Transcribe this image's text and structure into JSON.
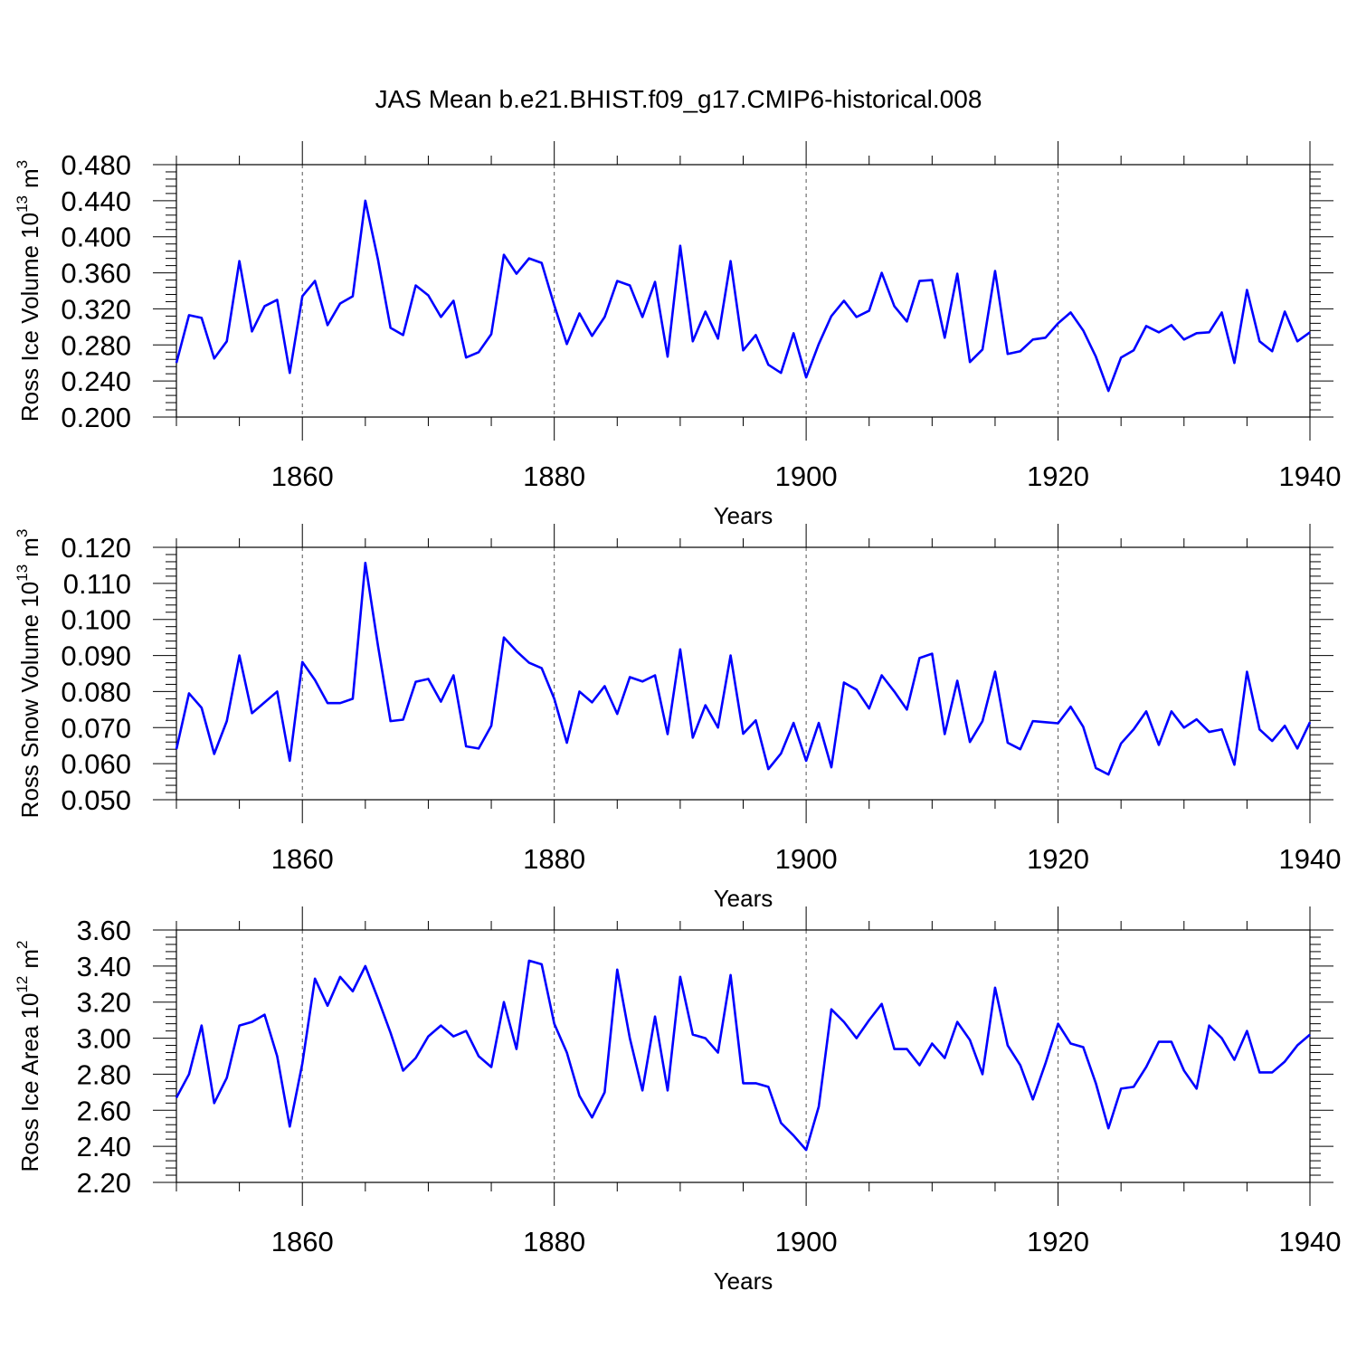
{
  "title": "JAS Mean b.e21.BHIST.f09_g17.CMIP6-historical.008",
  "chart_data": [
    {
      "type": "line",
      "ylabel": "Ross Ice Volume 10",
      "ylabel_exp": "13",
      "ylabel_unit": "m",
      "ylabel_unit_exp": "3",
      "xlabel": "Years",
      "xlim": [
        1850,
        1940
      ],
      "ylim": [
        0.2,
        0.48
      ],
      "yticks": [
        "0.200",
        "0.240",
        "0.280",
        "0.320",
        "0.360",
        "0.400",
        "0.440",
        "0.480"
      ],
      "xticks": [
        "1860",
        "1880",
        "1900",
        "1920",
        "1940"
      ],
      "grid": "dashed vertical at 1860, 1880, 1900, 1920",
      "color": "#0000ff",
      "x_start": 1850,
      "values": [
        0.26,
        0.313,
        0.31,
        0.265,
        0.284,
        0.373,
        0.295,
        0.323,
        0.33,
        0.249,
        0.334,
        0.351,
        0.302,
        0.326,
        0.334,
        0.44,
        0.375,
        0.299,
        0.291,
        0.346,
        0.335,
        0.311,
        0.329,
        0.266,
        0.272,
        0.292,
        0.38,
        0.359,
        0.376,
        0.371,
        0.324,
        0.281,
        0.315,
        0.29,
        0.311,
        0.351,
        0.346,
        0.311,
        0.35,
        0.267,
        0.39,
        0.284,
        0.317,
        0.287,
        0.373,
        0.274,
        0.291,
        0.258,
        0.249,
        0.293,
        0.244,
        0.281,
        0.312,
        0.329,
        0.311,
        0.318,
        0.36,
        0.323,
        0.306,
        0.351,
        0.352,
        0.288,
        0.359,
        0.261,
        0.275,
        0.362,
        0.27,
        0.273,
        0.286,
        0.288,
        0.304,
        0.316,
        0.296,
        0.267,
        0.229,
        0.266,
        0.274,
        0.301,
        0.294,
        0.302,
        0.286,
        0.293,
        0.294,
        0.316,
        0.26,
        0.341,
        0.284,
        0.273,
        0.317,
        0.284,
        0.294
      ]
    },
    {
      "type": "line",
      "ylabel": "Ross Snow Volume 10",
      "ylabel_exp": "13",
      "ylabel_unit": "m",
      "ylabel_unit_exp": "3",
      "xlabel": "Years",
      "xlim": [
        1850,
        1940
      ],
      "ylim": [
        0.05,
        0.12
      ],
      "yticks": [
        "0.050",
        "0.060",
        "0.070",
        "0.080",
        "0.090",
        "0.100",
        "0.110",
        "0.120"
      ],
      "xticks": [
        "1860",
        "1880",
        "1900",
        "1920",
        "1940"
      ],
      "grid": "dashed vertical at 1860, 1880, 1900, 1920",
      "color": "#0000ff",
      "x_start": 1850,
      "values": [
        0.064,
        0.0795,
        0.0755,
        0.0627,
        0.0718,
        0.09,
        0.074,
        0.077,
        0.08,
        0.0608,
        0.0882,
        0.0832,
        0.0768,
        0.0768,
        0.078,
        0.1157,
        0.0928,
        0.0718,
        0.0722,
        0.0827,
        0.0835,
        0.0772,
        0.0845,
        0.0648,
        0.0642,
        0.0705,
        0.095,
        0.0912,
        0.088,
        0.0865,
        0.078,
        0.0658,
        0.08,
        0.077,
        0.0815,
        0.0738,
        0.084,
        0.0828,
        0.0845,
        0.0682,
        0.0917,
        0.0672,
        0.0762,
        0.07,
        0.09,
        0.0683,
        0.072,
        0.0585,
        0.0628,
        0.0713,
        0.0608,
        0.0713,
        0.059,
        0.0825,
        0.0805,
        0.0753,
        0.0845,
        0.08,
        0.075,
        0.0893,
        0.0905,
        0.0682,
        0.083,
        0.066,
        0.0718,
        0.0855,
        0.0658,
        0.064,
        0.0718,
        0.0715,
        0.0712,
        0.0758,
        0.0702,
        0.0588,
        0.057,
        0.0656,
        0.0695,
        0.0745,
        0.0652,
        0.0745,
        0.07,
        0.0723,
        0.0688,
        0.0695,
        0.0597,
        0.0855,
        0.0695,
        0.0663,
        0.0705,
        0.0642,
        0.0715
      ]
    },
    {
      "type": "line",
      "ylabel": "Ross Ice Area 10",
      "ylabel_exp": "12",
      "ylabel_unit": "m",
      "ylabel_unit_exp": "2",
      "xlabel": "Years",
      "xlim": [
        1850,
        1940
      ],
      "ylim": [
        2.2,
        3.6
      ],
      "yticks": [
        "2.20",
        "2.40",
        "2.60",
        "2.80",
        "3.00",
        "3.20",
        "3.40",
        "3.60"
      ],
      "xticks": [
        "1860",
        "1880",
        "1900",
        "1920",
        "1940"
      ],
      "grid": "dashed vertical at 1860, 1880, 1900, 1920",
      "color": "#0000ff",
      "x_start": 1850,
      "values": [
        2.67,
        2.8,
        3.07,
        2.64,
        2.78,
        3.07,
        3.09,
        3.13,
        2.9,
        2.51,
        2.86,
        3.33,
        3.18,
        3.34,
        3.26,
        3.4,
        3.22,
        3.03,
        2.82,
        2.89,
        3.01,
        3.07,
        3.01,
        3.04,
        2.9,
        2.84,
        3.2,
        2.94,
        3.43,
        3.41,
        3.08,
        2.92,
        2.68,
        2.56,
        2.7,
        3.38,
        3.0,
        2.71,
        3.12,
        2.71,
        3.34,
        3.02,
        3.0,
        2.92,
        3.35,
        2.75,
        2.75,
        2.73,
        2.53,
        2.46,
        2.38,
        2.62,
        3.16,
        3.09,
        3.0,
        3.1,
        3.19,
        2.94,
        2.94,
        2.85,
        2.97,
        2.89,
        3.09,
        2.99,
        2.8,
        3.28,
        2.96,
        2.85,
        2.66,
        2.86,
        3.08,
        2.97,
        2.95,
        2.75,
        2.5,
        2.72,
        2.73,
        2.84,
        2.98,
        2.98,
        2.82,
        2.72,
        3.07,
        3.0,
        2.88,
        3.04,
        2.81,
        2.81,
        2.87,
        2.96,
        3.02
      ]
    }
  ]
}
